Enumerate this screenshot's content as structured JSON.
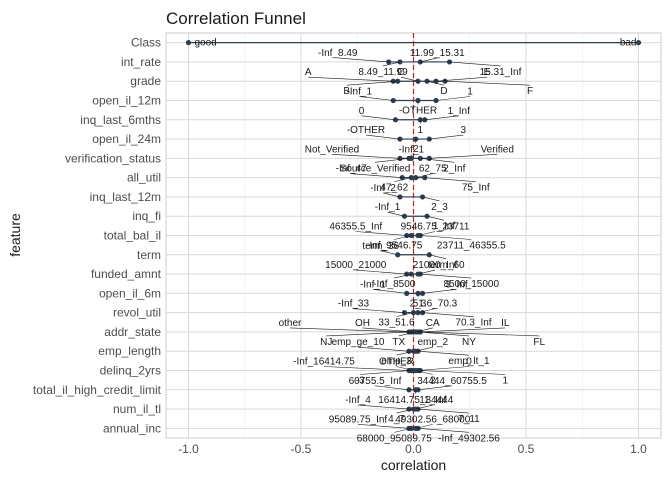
{
  "chart_data": {
    "type": "scatter",
    "title": "Correlation Funnel",
    "xlabel": "correlation",
    "ylabel": "feature",
    "xlim": [
      -1.1,
      1.1
    ],
    "x_ticks": [
      -1.0,
      -0.5,
      0.0,
      0.5,
      1.0
    ],
    "x_tick_labels": [
      "-1.0",
      "-0.5",
      "0.0",
      "0.5",
      "1.0"
    ],
    "reference_line": {
      "x": 0,
      "color": "#cc1f1f",
      "style": "dashed"
    },
    "grid": true,
    "point_color": "#2c3e50",
    "features": [
      "Class",
      "int_rate",
      "grade",
      "open_il_12m",
      "inq_last_6mths",
      "open_il_24m",
      "verification_status",
      "all_util",
      "inq_last_12m",
      "inq_fi",
      "total_bal_il",
      "term",
      "funded_amnt",
      "open_il_6m",
      "revol_util",
      "addr_state",
      "emp_length",
      "delinq_2yrs",
      "total_il_high_credit_limit",
      "num_il_tl",
      "annual_inc"
    ],
    "points": [
      {
        "feature": "Class",
        "x": -1.0,
        "label": "good"
      },
      {
        "feature": "Class",
        "x": 1.0,
        "label": "bad"
      },
      {
        "feature": "int_rate",
        "x": -0.11,
        "label": "-Inf_8.49"
      },
      {
        "feature": "int_rate",
        "x": -0.06,
        "label": "8.49_11.99"
      },
      {
        "feature": "int_rate",
        "x": 0.03,
        "label": "11.99_15.31"
      },
      {
        "feature": "int_rate",
        "x": 0.16,
        "label": "15.31_Inf"
      },
      {
        "feature": "grade",
        "x": -0.09,
        "label": "A"
      },
      {
        "feature": "grade",
        "x": -0.07,
        "label": "B"
      },
      {
        "feature": "grade",
        "x": 0.02,
        "label": "C"
      },
      {
        "feature": "grade",
        "x": 0.06,
        "label": "D"
      },
      {
        "feature": "grade",
        "x": 0.1,
        "label": "E"
      },
      {
        "feature": "grade",
        "x": 0.14,
        "label": "F"
      },
      {
        "feature": "open_il_12m",
        "x": -0.09,
        "label": "-Inf_1"
      },
      {
        "feature": "open_il_12m",
        "x": 0.02,
        "label": "-OTHER"
      },
      {
        "feature": "open_il_12m",
        "x": 0.1,
        "label": "1"
      },
      {
        "feature": "inq_last_6mths",
        "x": -0.08,
        "label": "0"
      },
      {
        "feature": "inq_last_6mths",
        "x": 0.03,
        "label": "1"
      },
      {
        "feature": "inq_last_6mths",
        "x": 0.05,
        "label": "1_Inf"
      },
      {
        "feature": "open_il_24m",
        "x": -0.06,
        "label": "-OTHER"
      },
      {
        "feature": "open_il_24m",
        "x": 0.01,
        "label": "2"
      },
      {
        "feature": "open_il_24m",
        "x": 0.07,
        "label": "3"
      },
      {
        "feature": "verification_status",
        "x": -0.06,
        "label": "Not_Verified"
      },
      {
        "feature": "verification_status",
        "x": -0.02,
        "label": "Source_Verified"
      },
      {
        "feature": "verification_status",
        "x": 0.07,
        "label": "Verified"
      },
      {
        "feature": "verification_status",
        "x": -0.01,
        "label": "-Inf_1"
      },
      {
        "feature": "verification_status",
        "x": 0.03,
        "label": "2_Inf"
      },
      {
        "feature": "all_util",
        "x": -0.05,
        "label": "-Inf_47"
      },
      {
        "feature": "all_util",
        "x": -0.01,
        "label": "47_62"
      },
      {
        "feature": "all_util",
        "x": 0.01,
        "label": "62_75"
      },
      {
        "feature": "all_util",
        "x": 0.05,
        "label": "75_Inf"
      },
      {
        "feature": "inq_last_12m",
        "x": -0.06,
        "label": "-Inf_2"
      },
      {
        "feature": "inq_last_12m",
        "x": 0.04,
        "label": "2_3"
      },
      {
        "feature": "inq_fi",
        "x": -0.04,
        "label": "-Inf_1"
      },
      {
        "feature": "inq_fi",
        "x": 0.06,
        "label": "1_Inf"
      },
      {
        "feature": "total_bal_il",
        "x": -0.03,
        "label": "46355.5_Inf"
      },
      {
        "feature": "total_bal_il",
        "x": -0.01,
        "label": "-Inf_9546.75"
      },
      {
        "feature": "total_bal_il",
        "x": 0.02,
        "label": "9546.75_23711"
      },
      {
        "feature": "total_bal_il",
        "x": 0.03,
        "label": "23711_46355.5"
      },
      {
        "feature": "term",
        "x": -0.07,
        "label": "term_36"
      },
      {
        "feature": "term",
        "x": 0.07,
        "label": "term_60"
      },
      {
        "feature": "funded_amnt",
        "x": -0.03,
        "label": "15000_21000"
      },
      {
        "feature": "funded_amnt",
        "x": -0.01,
        "label": "-Inf_8500"
      },
      {
        "feature": "funded_amnt",
        "x": 0.02,
        "label": "21000_Inf"
      },
      {
        "feature": "funded_amnt",
        "x": 0.03,
        "label": "8500_15000"
      },
      {
        "feature": "open_il_6m",
        "x": -0.03,
        "label": "-Inf_1"
      },
      {
        "feature": "open_il_6m",
        "x": 0.02,
        "label": "2_3"
      },
      {
        "feature": "open_il_6m",
        "x": 0.04,
        "label": "3_Inf"
      },
      {
        "feature": "revol_util",
        "x": -0.04,
        "label": "-Inf_33"
      },
      {
        "feature": "revol_util",
        "x": 0.0,
        "label": "33_51.6"
      },
      {
        "feature": "revol_util",
        "x": 0.02,
        "label": "51.6_70.3"
      },
      {
        "feature": "revol_util",
        "x": 0.04,
        "label": "70.3_Inf"
      },
      {
        "feature": "addr_state",
        "x": -0.02,
        "label": "other"
      },
      {
        "feature": "addr_state",
        "x": 0.0,
        "label": "OH"
      },
      {
        "feature": "addr_state",
        "x": 0.01,
        "label": "TX"
      },
      {
        "feature": "addr_state",
        "x": 0.02,
        "label": "NY"
      },
      {
        "feature": "addr_state",
        "x": -0.01,
        "label": "NJ"
      },
      {
        "feature": "addr_state",
        "x": 0.03,
        "label": "IL"
      },
      {
        "feature": "addr_state",
        "x": 0.01,
        "label": "CA"
      },
      {
        "feature": "addr_state",
        "x": 0.03,
        "label": "FL"
      },
      {
        "feature": "emp_length",
        "x": -0.02,
        "label": "emp_ge_10"
      },
      {
        "feature": "emp_length",
        "x": 0.0,
        "label": "emp_3"
      },
      {
        "feature": "emp_length",
        "x": 0.01,
        "label": "emp_2"
      },
      {
        "feature": "emp_length",
        "x": 0.02,
        "label": "emp_lt_1"
      },
      {
        "feature": "delinq_2yrs",
        "x": -0.02,
        "label": "-Inf_16414.75"
      },
      {
        "feature": "delinq_2yrs",
        "x": -0.01,
        "label": "-3"
      },
      {
        "feature": "delinq_2yrs",
        "x": 0.0,
        "label": "OTHER"
      },
      {
        "feature": "delinq_2yrs",
        "x": 0.01,
        "label": "2"
      },
      {
        "feature": "delinq_2yrs",
        "x": 0.02,
        "label": "0"
      },
      {
        "feature": "delinq_2yrs",
        "x": 0.03,
        "label": "1"
      },
      {
        "feature": "total_il_high_credit_limit",
        "x": -0.02,
        "label": "60755.5_Inf"
      },
      {
        "feature": "total_il_high_credit_limit",
        "x": 0.01,
        "label": "16414.75_34444"
      },
      {
        "feature": "total_il_high_credit_limit",
        "x": 0.02,
        "label": "34444_60755.5"
      },
      {
        "feature": "num_il_tl",
        "x": -0.02,
        "label": "-Inf_4"
      },
      {
        "feature": "num_il_tl",
        "x": 0.0,
        "label": "4_7"
      },
      {
        "feature": "num_il_tl",
        "x": 0.01,
        "label": "11_Inf"
      },
      {
        "feature": "num_il_tl",
        "x": 0.02,
        "label": "7_11"
      },
      {
        "feature": "annual_inc",
        "x": -0.02,
        "label": "95089.75_Inf"
      },
      {
        "feature": "annual_inc",
        "x": -0.01,
        "label": "68000_95089.75"
      },
      {
        "feature": "annual_inc",
        "x": 0.01,
        "label": "49302.56_68000"
      },
      {
        "feature": "annual_inc",
        "x": 0.02,
        "label": "-Inf_49302.56"
      }
    ]
  }
}
